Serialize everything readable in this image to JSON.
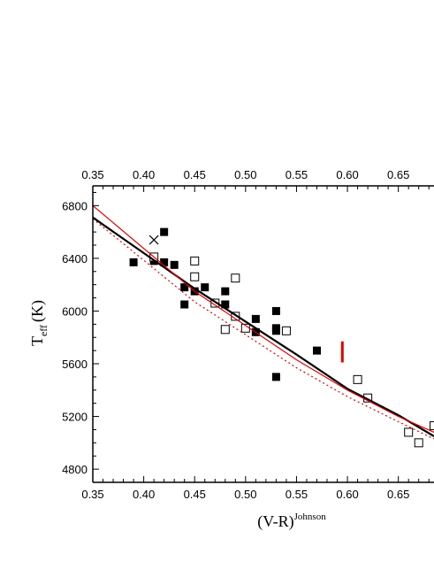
{
  "chart_data": {
    "type": "scatter",
    "title": "",
    "xlabel": "(V-R)",
    "xlabel_superscript": "Johnson",
    "ylabel_main": "T",
    "ylabel_subscript": "eff",
    "ylabel_unit": "(K)",
    "xlim": [
      0.35,
      0.685
    ],
    "ylim": [
      4700,
      6950
    ],
    "x_ticks": [
      "0.35",
      "0.40",
      "0.45",
      "0.50",
      "0.55",
      "0.60",
      "0.65"
    ],
    "x_tick_values": [
      0.35,
      0.4,
      0.45,
      0.5,
      0.55,
      0.6,
      0.65
    ],
    "y_ticks": [
      "4800",
      "5200",
      "5600",
      "6000",
      "6400",
      "6800"
    ],
    "y_tick_values": [
      4800,
      5200,
      5600,
      6000,
      6400,
      6800
    ],
    "grid": false,
    "legend": "none",
    "series": [
      {
        "marker": "filled-square",
        "color": "#000000",
        "points": [
          [
            0.39,
            6370
          ],
          [
            0.41,
            6380
          ],
          [
            0.42,
            6600
          ],
          [
            0.42,
            6370
          ],
          [
            0.43,
            6350
          ],
          [
            0.44,
            6180
          ],
          [
            0.44,
            6050
          ],
          [
            0.45,
            6150
          ],
          [
            0.46,
            6180
          ],
          [
            0.48,
            6150
          ],
          [
            0.48,
            6050
          ],
          [
            0.51,
            5940
          ],
          [
            0.51,
            5840
          ],
          [
            0.53,
            6000
          ],
          [
            0.53,
            5870
          ],
          [
            0.53,
            5850
          ],
          [
            0.53,
            5500
          ],
          [
            0.57,
            5700
          ]
        ]
      },
      {
        "marker": "open-square",
        "color": "#000000",
        "points": [
          [
            0.41,
            6410
          ],
          [
            0.45,
            6380
          ],
          [
            0.45,
            6260
          ],
          [
            0.47,
            6060
          ],
          [
            0.48,
            5860
          ],
          [
            0.49,
            5960
          ],
          [
            0.49,
            6250
          ],
          [
            0.5,
            5870
          ],
          [
            0.54,
            5850
          ],
          [
            0.61,
            5480
          ],
          [
            0.62,
            5340
          ],
          [
            0.66,
            5080
          ],
          [
            0.67,
            5000
          ],
          [
            0.685,
            5130
          ]
        ]
      },
      {
        "marker": "cross",
        "color": "#000000",
        "points": [
          [
            0.41,
            6540
          ]
        ]
      },
      {
        "marker": "line",
        "color": "#000000",
        "line_style": "solid-thick",
        "points": [
          [
            0.35,
            6710
          ],
          [
            0.45,
            6170
          ],
          [
            0.55,
            5670
          ],
          [
            0.6,
            5410
          ],
          [
            0.65,
            5210
          ],
          [
            0.685,
            5050
          ]
        ]
      },
      {
        "marker": "line",
        "color": "#e00000",
        "line_style": "solid",
        "points": [
          [
            0.35,
            6800
          ],
          [
            0.45,
            6150
          ],
          [
            0.55,
            5630
          ],
          [
            0.6,
            5400
          ],
          [
            0.65,
            5200
          ],
          [
            0.685,
            5080
          ]
        ]
      },
      {
        "marker": "line",
        "color": "#e00000",
        "line_style": "dotted",
        "points": [
          [
            0.35,
            6700
          ],
          [
            0.45,
            6070
          ],
          [
            0.55,
            5570
          ],
          [
            0.6,
            5350
          ],
          [
            0.65,
            5160
          ],
          [
            0.685,
            5030
          ]
        ]
      },
      {
        "marker": "vertical-bar",
        "color": "#e00000",
        "points": [
          [
            0.595,
            5610
          ],
          [
            0.595,
            5770
          ]
        ]
      }
    ]
  }
}
